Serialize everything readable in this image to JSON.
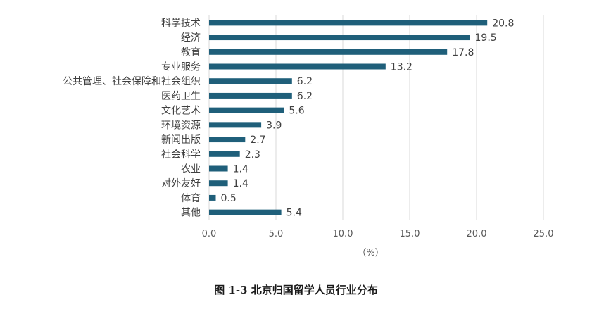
{
  "caption": "图 1-3  北京归国留学人员行业分布",
  "chart_data": {
    "type": "bar",
    "orientation": "horizontal",
    "categories": [
      "科学技术",
      "经济",
      "教育",
      "专业服务",
      "公共管理、社会保障和社会组织",
      "医药卫生",
      "文化艺术",
      "环境资源",
      "新闻出版",
      "社会科学",
      "农业",
      "对外友好",
      "体育",
      "其他"
    ],
    "values": [
      20.8,
      19.5,
      17.8,
      13.2,
      6.2,
      6.2,
      5.6,
      3.9,
      2.7,
      2.3,
      1.4,
      1.4,
      0.5,
      5.4
    ],
    "value_labels": [
      "20.8",
      "19.5",
      "17.8",
      "13.2",
      "6.2",
      "6.2",
      "5.6",
      "3.9",
      "2.7",
      "2.3",
      "1.4",
      "1.4",
      "0.5",
      "5.4"
    ],
    "xlabel": "（%）",
    "xlim": [
      0,
      25
    ],
    "xticks": [
      "0.0",
      "5.0",
      "10.0",
      "15.0",
      "20.0",
      "25.0"
    ],
    "grid": "vertical",
    "bar_color": "#1f5f7a"
  }
}
